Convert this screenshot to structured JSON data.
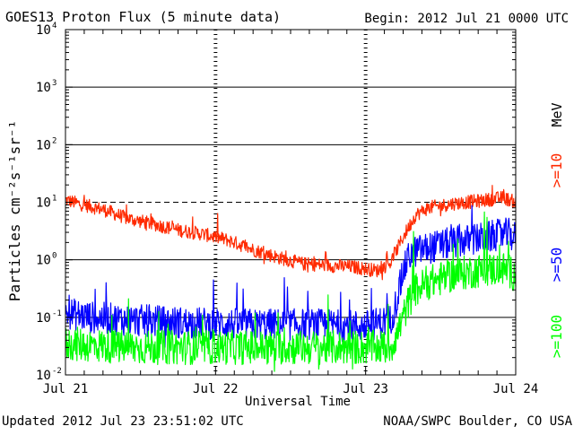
{
  "header": {
    "title": "GOES13 Proton Flux (5 minute data)",
    "begin": "Begin: 2012 Jul 21 0000 UTC"
  },
  "footer": {
    "updated": "Updated 2012 Jul 23 23:51:02 UTC",
    "credit": "NOAA/SWPC Boulder, CO USA"
  },
  "chart_data": {
    "type": "line",
    "title": "GOES13 Proton Flux (5 minute data)",
    "xlabel": "Universal Time",
    "ylabel": "Particles cm⁻²s⁻¹sr⁻¹",
    "yscale": "log",
    "ylim": [
      0.01,
      10000
    ],
    "xlim": [
      0,
      72
    ],
    "x_unit": "hours since 2012 Jul 21 0000 UTC",
    "xticks": [
      {
        "value": 0,
        "label": "Jul 21"
      },
      {
        "value": 24,
        "label": "Jul 22"
      },
      {
        "value": 48,
        "label": "Jul 23"
      },
      {
        "value": 72,
        "label": "Jul 24"
      }
    ],
    "yticks": [
      {
        "value": 0.01,
        "base": "10",
        "exp": "-2"
      },
      {
        "value": 0.1,
        "base": "10",
        "exp": "-1"
      },
      {
        "value": 1,
        "base": "10",
        "exp": "0"
      },
      {
        "value": 10,
        "base": "10",
        "exp": "1"
      },
      {
        "value": 100,
        "base": "10",
        "exp": "2"
      },
      {
        "value": 1000,
        "base": "10",
        "exp": "3"
      },
      {
        "value": 10000,
        "base": "10",
        "exp": "4"
      }
    ],
    "threshold_line": 10,
    "energy_unit": "MeV",
    "series": [
      {
        "name": ">=10",
        "color": "#ff2a00",
        "noise": 0.12,
        "x": [
          0,
          2,
          6,
          10,
          14,
          18,
          22,
          26,
          30,
          34,
          38,
          42,
          46,
          50,
          52,
          54,
          56,
          58,
          62,
          66,
          70,
          72
        ],
        "values": [
          11,
          9.5,
          7.5,
          5.2,
          4.2,
          3.3,
          2.8,
          2.2,
          1.5,
          1.1,
          0.85,
          0.8,
          0.75,
          0.65,
          0.9,
          2.5,
          6.0,
          8.0,
          9.5,
          10.5,
          12,
          10
        ]
      },
      {
        "name": ">=50",
        "color": "#0000ff",
        "noise": 0.28,
        "x": [
          0,
          4,
          10,
          20,
          30,
          40,
          48,
          52,
          53,
          54,
          55,
          56,
          58,
          62,
          66,
          70,
          71,
          72
        ],
        "values": [
          0.12,
          0.1,
          0.09,
          0.08,
          0.075,
          0.075,
          0.07,
          0.09,
          0.2,
          0.6,
          1.2,
          1.4,
          1.6,
          2.0,
          2.3,
          2.8,
          2.8,
          2.4
        ]
      },
      {
        "name": ">=100",
        "color": "#00ff00",
        "noise": 0.3,
        "x": [
          0,
          10,
          20,
          30,
          40,
          48,
          52,
          53,
          54,
          55,
          56,
          58,
          62,
          66,
          70,
          72
        ],
        "values": [
          0.035,
          0.03,
          0.03,
          0.03,
          0.03,
          0.03,
          0.03,
          0.05,
          0.1,
          0.2,
          0.3,
          0.4,
          0.55,
          0.65,
          0.7,
          0.55
        ]
      }
    ]
  }
}
